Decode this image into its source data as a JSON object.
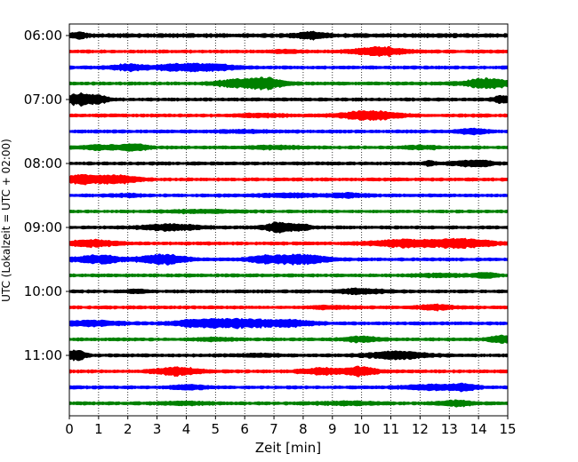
{
  "chart_data": {
    "type": "line",
    "title": "",
    "xlabel": "Zeit  [min]",
    "ylabel": "UTC (Lokalzeit = UTC + 02:00)",
    "xlim": [
      0,
      15
    ],
    "x_ticks": [
      0,
      1,
      2,
      3,
      4,
      5,
      6,
      7,
      8,
      9,
      10,
      11,
      12,
      13,
      14,
      15
    ],
    "x_tick_labels": [
      "0",
      "1",
      "2",
      "3",
      "4",
      "5",
      "6",
      "7",
      "8",
      "9",
      "10",
      "11",
      "12",
      "13",
      "14",
      "15"
    ],
    "y_tick_labels": [
      "06:00",
      "07:00",
      "08:00",
      "09:00",
      "10:00",
      "11:00"
    ],
    "grid": "vertical, dotted",
    "color_cycle": [
      "#000000",
      "#ff0000",
      "#0000ff",
      "#008000"
    ],
    "series": [
      {
        "start": "06:00",
        "base": 2.5,
        "bursts": [
          {
            "t": 0.3,
            "w": 0.3,
            "a": 2.5
          },
          {
            "t": 8.3,
            "w": 0.5,
            "a": 3.0
          }
        ]
      },
      {
        "start": "06:15",
        "base": 2.0,
        "bursts": [
          {
            "t": 10.6,
            "w": 0.9,
            "a": 4.5
          },
          {
            "t": 7.5,
            "w": 0.5,
            "a": 1.2
          }
        ]
      },
      {
        "start": "06:30",
        "base": 2.0,
        "bursts": [
          {
            "t": 2.0,
            "w": 0.6,
            "a": 3.0
          },
          {
            "t": 3.8,
            "w": 0.8,
            "a": 3.5
          },
          {
            "t": 5.0,
            "w": 0.8,
            "a": 2.5
          }
        ]
      },
      {
        "start": "06:45",
        "base": 2.0,
        "bursts": [
          {
            "t": 5.7,
            "w": 0.7,
            "a": 4.0
          },
          {
            "t": 6.7,
            "w": 0.6,
            "a": 5.5
          },
          {
            "t": 14.3,
            "w": 0.8,
            "a": 5.0
          }
        ]
      },
      {
        "start": "07:00",
        "base": 2.0,
        "bursts": [
          {
            "t": 0.35,
            "w": 0.4,
            "a": 6.5
          },
          {
            "t": 1.0,
            "w": 0.3,
            "a": 4.5
          },
          {
            "t": 14.8,
            "w": 0.3,
            "a": 3.5
          }
        ]
      },
      {
        "start": "07:15",
        "base": 2.0,
        "bursts": [
          {
            "t": 10.3,
            "w": 1.0,
            "a": 4.5
          },
          {
            "t": 6.5,
            "w": 0.8,
            "a": 1.5
          }
        ]
      },
      {
        "start": "07:30",
        "base": 2.0,
        "bursts": [
          {
            "t": 13.8,
            "w": 0.5,
            "a": 2.5
          },
          {
            "t": 6.0,
            "w": 1.0,
            "a": 1.0
          }
        ]
      },
      {
        "start": "07:45",
        "base": 2.0,
        "bursts": [
          {
            "t": 1.2,
            "w": 1.0,
            "a": 2.0
          },
          {
            "t": 2.3,
            "w": 0.4,
            "a": 3.0
          },
          {
            "t": 7.0,
            "w": 0.8,
            "a": 1.5
          },
          {
            "t": 12.0,
            "w": 0.6,
            "a": 1.5
          }
        ]
      },
      {
        "start": "08:00",
        "base": 2.0,
        "bursts": [
          {
            "t": 12.3,
            "w": 0.2,
            "a": 2.5
          },
          {
            "t": 13.5,
            "w": 0.4,
            "a": 2.5
          },
          {
            "t": 14.1,
            "w": 0.4,
            "a": 2.5
          }
        ]
      },
      {
        "start": "08:15",
        "base": 2.0,
        "bursts": [
          {
            "t": 0.4,
            "w": 0.6,
            "a": 4.5
          },
          {
            "t": 1.6,
            "w": 0.7,
            "a": 4.0
          }
        ]
      },
      {
        "start": "08:30",
        "base": 2.0,
        "bursts": [
          {
            "t": 7.5,
            "w": 1.0,
            "a": 1.6
          },
          {
            "t": 9.5,
            "w": 0.6,
            "a": 2.0
          },
          {
            "t": 2.0,
            "w": 0.5,
            "a": 1.2
          }
        ]
      },
      {
        "start": "08:45",
        "base": 1.8,
        "bursts": [
          {
            "t": 4.5,
            "w": 1.4,
            "a": 1.2
          }
        ]
      },
      {
        "start": "09:00",
        "base": 2.0,
        "bursts": [
          {
            "t": 3.5,
            "w": 1.0,
            "a": 3.0
          },
          {
            "t": 7.2,
            "w": 0.5,
            "a": 5.0
          },
          {
            "t": 8.0,
            "w": 0.3,
            "a": 2.5
          }
        ]
      },
      {
        "start": "09:15",
        "base": 2.0,
        "bursts": [
          {
            "t": 0.8,
            "w": 0.8,
            "a": 3.5
          },
          {
            "t": 11.5,
            "w": 1.2,
            "a": 3.5
          },
          {
            "t": 13.5,
            "w": 1.0,
            "a": 4.5
          }
        ]
      },
      {
        "start": "09:30",
        "base": 2.0,
        "bursts": [
          {
            "t": 1.0,
            "w": 0.8,
            "a": 4.0
          },
          {
            "t": 3.2,
            "w": 0.8,
            "a": 5.0
          },
          {
            "t": 7.8,
            "w": 1.0,
            "a": 5.0
          },
          {
            "t": 6.6,
            "w": 0.5,
            "a": 2.5
          }
        ]
      },
      {
        "start": "09:45",
        "base": 2.0,
        "bursts": [
          {
            "t": 14.2,
            "w": 0.4,
            "a": 2.5
          },
          {
            "t": 12.6,
            "w": 0.8,
            "a": 1.2
          }
        ]
      },
      {
        "start": "10:00",
        "base": 2.0,
        "bursts": [
          {
            "t": 10.0,
            "w": 0.8,
            "a": 2.5
          },
          {
            "t": 2.3,
            "w": 0.4,
            "a": 1.5
          }
        ]
      },
      {
        "start": "10:15",
        "base": 2.0,
        "bursts": [
          {
            "t": 12.5,
            "w": 0.6,
            "a": 2.5
          },
          {
            "t": 9.0,
            "w": 0.7,
            "a": 1.2
          }
        ]
      },
      {
        "start": "10:30",
        "base": 2.0,
        "bursts": [
          {
            "t": 0.8,
            "w": 1.0,
            "a": 2.5
          },
          {
            "t": 4.3,
            "w": 0.8,
            "a": 3.0
          },
          {
            "t": 5.8,
            "w": 1.2,
            "a": 4.5
          },
          {
            "t": 7.6,
            "w": 0.8,
            "a": 3.0
          }
        ]
      },
      {
        "start": "10:45",
        "base": 2.0,
        "bursts": [
          {
            "t": 10.0,
            "w": 0.6,
            "a": 2.5
          },
          {
            "t": 14.8,
            "w": 0.4,
            "a": 3.5
          },
          {
            "t": 5.0,
            "w": 0.7,
            "a": 1.2
          }
        ]
      },
      {
        "start": "11:00",
        "base": 2.0,
        "bursts": [
          {
            "t": 0.25,
            "w": 0.3,
            "a": 5.5
          },
          {
            "t": 11.2,
            "w": 1.0,
            "a": 4.0
          },
          {
            "t": 6.5,
            "w": 0.8,
            "a": 1.2
          }
        ]
      },
      {
        "start": "11:15",
        "base": 2.0,
        "bursts": [
          {
            "t": 3.7,
            "w": 0.8,
            "a": 4.0
          },
          {
            "t": 8.7,
            "w": 0.8,
            "a": 3.0
          },
          {
            "t": 10.0,
            "w": 0.5,
            "a": 4.5
          }
        ]
      },
      {
        "start": "11:30",
        "base": 2.0,
        "bursts": [
          {
            "t": 4.1,
            "w": 0.6,
            "a": 2.0
          },
          {
            "t": 12.5,
            "w": 1.0,
            "a": 2.5
          },
          {
            "t": 13.5,
            "w": 0.4,
            "a": 3.0
          }
        ]
      },
      {
        "start": "11:45",
        "base": 2.0,
        "bursts": [
          {
            "t": 13.2,
            "w": 0.6,
            "a": 2.5
          },
          {
            "t": 4.0,
            "w": 1.0,
            "a": 1.2
          },
          {
            "t": 9.5,
            "w": 1.0,
            "a": 1.5
          }
        ]
      }
    ]
  }
}
